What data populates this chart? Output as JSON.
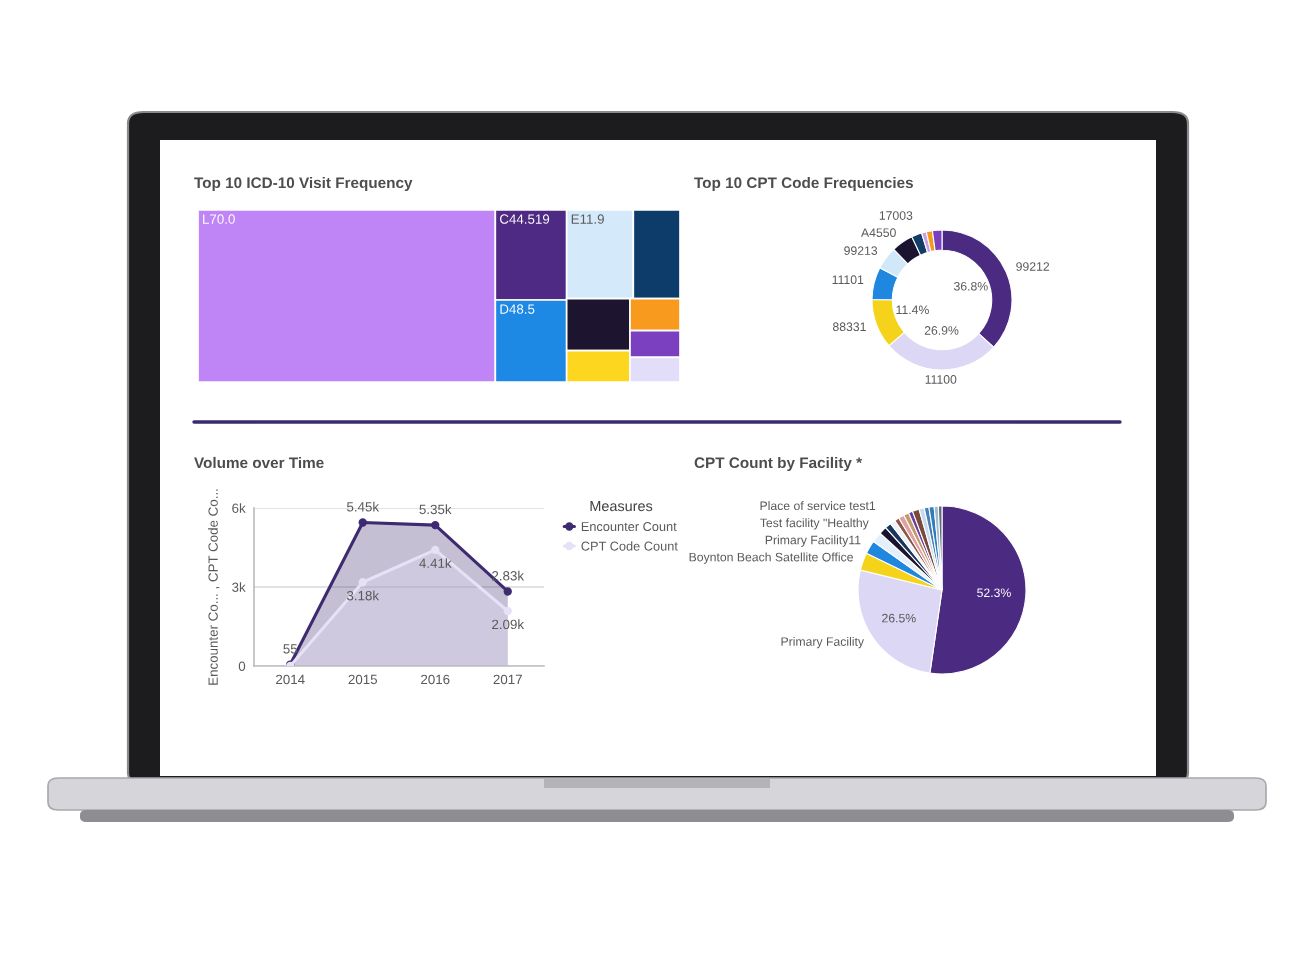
{
  "chart_data": [
    {
      "type": "other",
      "title": "Top 10 ICD-10 Visit Frequency",
      "categories": [
        "L70.0",
        "C44.519",
        "D48.5",
        "E11.9",
        null,
        null,
        null,
        null,
        null,
        null
      ],
      "colors": [
        "#bf85f7",
        "#4e2a84",
        "#1e88e5",
        "#d4eafa",
        "#0d3c6b",
        "#1d1530",
        "#fcd61f",
        "#f79a1e",
        "#7b40bf",
        "#e2defa"
      ]
    },
    {
      "type": "donut",
      "title": "Top 10 CPT Code Frequencies",
      "categories": [
        "99212",
        "11100",
        "88331",
        "11101",
        "99213",
        "A4550",
        "17003",
        null,
        null,
        null
      ],
      "values": [
        36.8,
        26.9,
        11.4,
        7.5,
        5.3,
        5.0,
        2.4,
        1.1,
        1.4,
        2.2
      ],
      "value_labels": [
        "36.8%",
        "26.9%",
        "11.4%",
        null,
        null,
        null,
        null,
        null,
        null,
        null
      ],
      "colors": [
        "#4b2a82",
        "#dcd7f5",
        "#f5d31b",
        "#1f87e0",
        "#d1e8f8",
        "#1b1430",
        "#123d66",
        "#c9a0f0",
        "#f49a1c",
        "#7a3fbd"
      ]
    },
    {
      "type": "area",
      "title": "Volume over Time",
      "ylabel": "Encounter Co... , CPT Code Co...",
      "categories": [
        "2014",
        "2015",
        "2016",
        "2017"
      ],
      "series": [
        {
          "name": "Encounter Count",
          "color": "#3e2a70",
          "values": [
            55,
            5450,
            5350,
            2830
          ],
          "value_labels": [
            "55",
            "5.45k",
            "5.35k",
            "2.83k"
          ]
        },
        {
          "name": "CPT Code Count",
          "color": "#e6e1f5",
          "values": [
            0,
            3180,
            4410,
            2090
          ],
          "value_labels": [
            null,
            "3.18k",
            "4.41k",
            "2.09k"
          ]
        }
      ],
      "ylim": [
        0,
        6000
      ],
      "yticks": [
        0,
        {
          "value": 3000,
          "label": "3k"
        },
        {
          "value": 6000,
          "label": "6k"
        }
      ],
      "grid": "y",
      "legend": "right",
      "legend_title": "Measures",
      "marker": "circle"
    },
    {
      "type": "pie",
      "title": "CPT Count by Facility *",
      "categories": [
        null,
        "Primary Facility",
        "Boynton Beach Satellite Office",
        "Primary Facility11",
        "Test facility \"Healthy",
        "Place of service test1",
        null,
        null,
        null,
        null,
        null,
        null,
        null,
        null,
        null,
        null,
        null,
        null
      ],
      "values": [
        52.3,
        26.5,
        3.4,
        2.6,
        2.0,
        1.5,
        1.2,
        1.0,
        0.9,
        1.1,
        1.0,
        0.8,
        1.3,
        1.0,
        0.9,
        1.0,
        0.8,
        0.7
      ],
      "value_labels": [
        "52.3%",
        "26.5%",
        null,
        null,
        null,
        null,
        null,
        null,
        null,
        null,
        null,
        null,
        null,
        null,
        null,
        null,
        null,
        null
      ],
      "colors": [
        "#4b2a82",
        "#dcd7f5",
        "#f5d31b",
        "#1f87e0",
        "#e3f0fb",
        "#1b1430",
        "#17375e",
        "#eef2f7",
        "#8c564b",
        "#e0a0a0",
        "#c49a6c",
        "#6b3fa0",
        "#7b4a3a",
        "#c6dbef",
        "#4a7fb5",
        "#2c7fb8",
        "#a0b8d0",
        "#5f6b7a"
      ]
    }
  ]
}
